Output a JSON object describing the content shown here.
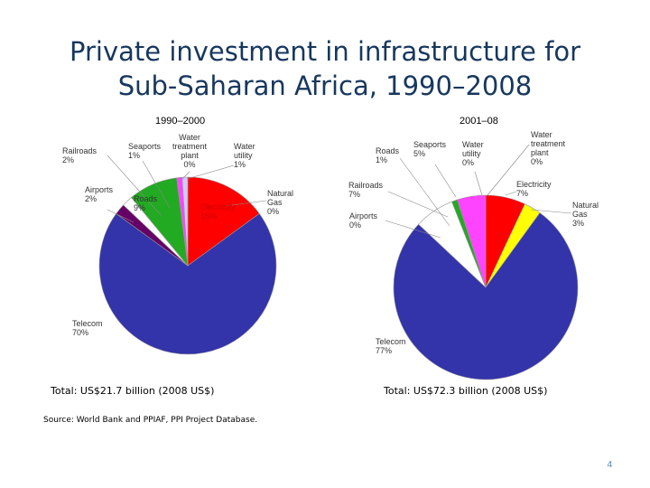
{
  "slide": {
    "title": "Private investment in infrastructure for Sub-Saharan Africa, 1990–2008",
    "source": "Source: World Bank and PPIAF, PPI Project Database.",
    "page_number": "4"
  },
  "chart_data": [
    {
      "type": "pie",
      "title": "1990–2000",
      "total_label": "Total: US$21.7 billion (2008 US$)",
      "slices": [
        {
          "name": "Electricity",
          "value": 15,
          "display": "15%",
          "color": "#ff0000"
        },
        {
          "name": "Natural Gas",
          "value": 0,
          "display": "0%",
          "color": "#ffff00"
        },
        {
          "name": "Telecom",
          "value": 70,
          "display": "70%",
          "color": "#3333aa"
        },
        {
          "name": "Airports",
          "value": 2,
          "display": "2%",
          "color": "#660066"
        },
        {
          "name": "Railroads",
          "value": 2,
          "display": "2%",
          "color": "#ffffff"
        },
        {
          "name": "Roads",
          "value": 9,
          "display": "9%",
          "color": "#22aa22"
        },
        {
          "name": "Seaports",
          "value": 1,
          "display": "1%",
          "color": "#ff44ff"
        },
        {
          "name": "Water treatment plant",
          "value": 0,
          "display": "0%",
          "color": "#9999ff"
        },
        {
          "name": "Water utility",
          "value": 1,
          "display": "1%",
          "color": "#ccccff"
        }
      ]
    },
    {
      "type": "pie",
      "title": "2001–08",
      "total_label": "Total: US$72.3 billion (2008 US$)",
      "slices": [
        {
          "name": "Electricity",
          "value": 7,
          "display": "7%",
          "color": "#ff0000"
        },
        {
          "name": "Natural Gas",
          "value": 3,
          "display": "3%",
          "color": "#ffff00"
        },
        {
          "name": "Telecom",
          "value": 77,
          "display": "77%",
          "color": "#3333aa"
        },
        {
          "name": "Airports",
          "value": 0,
          "display": "0%",
          "color": "#660066"
        },
        {
          "name": "Railroads",
          "value": 7,
          "display": "7%",
          "color": "#ffffff"
        },
        {
          "name": "Roads",
          "value": 1,
          "display": "1%",
          "color": "#22aa22"
        },
        {
          "name": "Seaports",
          "value": 5,
          "display": "5%",
          "color": "#ff44ff"
        },
        {
          "name": "Water utility",
          "value": 0,
          "display": "0%",
          "color": "#ccccff"
        },
        {
          "name": "Water treatment plant",
          "value": 0,
          "display": "0%",
          "color": "#9999ff"
        }
      ]
    }
  ],
  "pie_labels": [
    [
      {
        "lines": [
          "Electricity",
          "15%"
        ],
        "color": "#cc0000"
      },
      {
        "lines": [
          "Natural",
          "Gas",
          "0%"
        ]
      },
      {
        "lines": [
          "Telecom",
          "70%"
        ]
      },
      {
        "lines": [
          "Airports",
          "2%"
        ]
      },
      {
        "lines": [
          "Railroads",
          "2%"
        ]
      },
      {
        "lines": [
          "Roads",
          "9%"
        ]
      },
      {
        "lines": [
          "Seaports",
          "1%"
        ]
      },
      {
        "lines": [
          "Water",
          "treatment",
          "plant",
          "0%"
        ]
      },
      {
        "lines": [
          "Water",
          "utility",
          "1%"
        ]
      }
    ],
    [
      {
        "lines": [
          "Electricity",
          "7%"
        ]
      },
      {
        "lines": [
          "Natural",
          "Gas",
          "3%"
        ]
      },
      {
        "lines": [
          "Telecom",
          "77%"
        ]
      },
      {
        "lines": [
          "Airports",
          "0%"
        ]
      },
      {
        "lines": [
          "Railroads",
          "7%"
        ]
      },
      {
        "lines": [
          "Roads",
          "1%"
        ]
      },
      {
        "lines": [
          "Seaports",
          "5%"
        ]
      },
      {
        "lines": [
          "Water",
          "utility",
          "0%"
        ]
      },
      {
        "lines": [
          "Water",
          "treatment",
          "plant",
          "0%"
        ]
      }
    ]
  ]
}
